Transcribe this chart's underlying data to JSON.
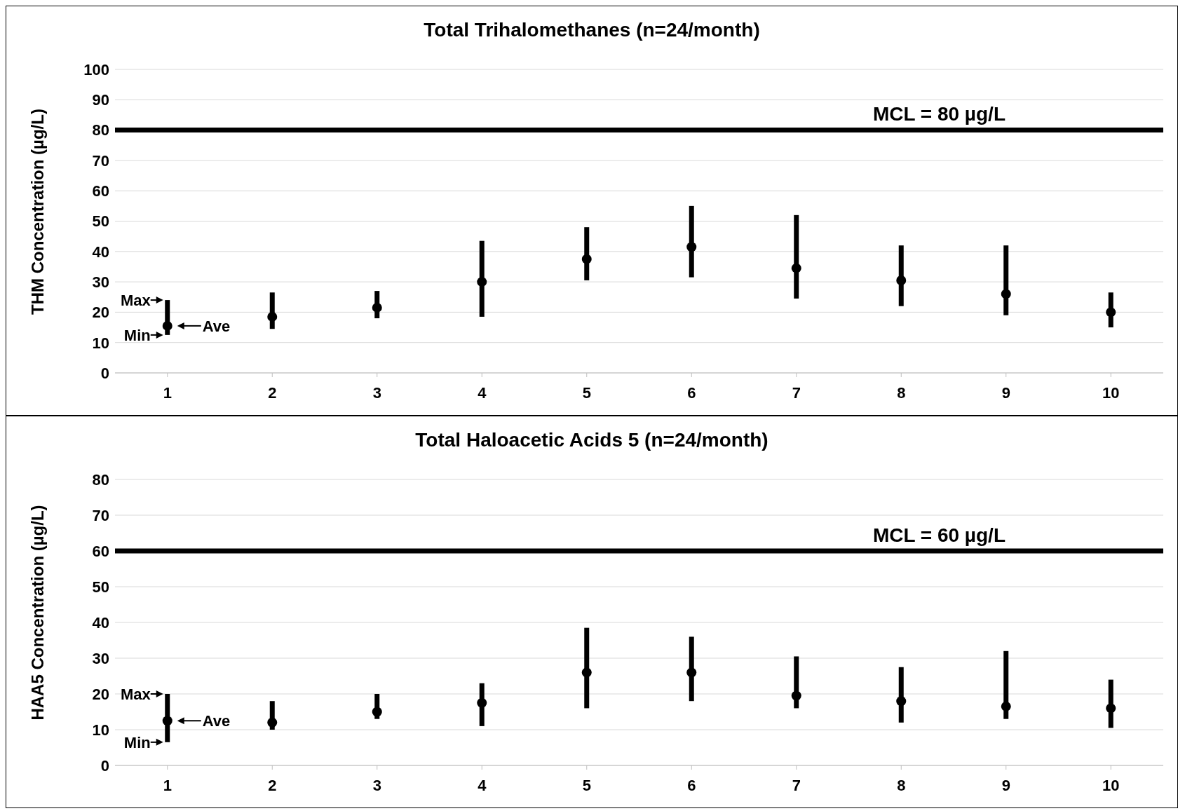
{
  "chart_data": [
    {
      "type": "scatter",
      "title": "Total Trihalomethanes (n=24/month)",
      "ylabel": "THM Concentration (µg/L)",
      "categories": [
        "1",
        "2",
        "3",
        "4",
        "5",
        "6",
        "7",
        "8",
        "9",
        "10"
      ],
      "series": [
        {
          "color": "#000000",
          "values": [
            15.5,
            18.5,
            21.5,
            30,
            37.5,
            41.5,
            34.5,
            30.5,
            26,
            20
          ],
          "errors": [
            [
              12.5,
              24
            ],
            [
              14.5,
              26.5
            ],
            [
              18,
              27
            ],
            [
              18.5,
              43.5
            ],
            [
              30.5,
              48
            ],
            [
              31.5,
              55
            ],
            [
              24.5,
              52
            ],
            [
              22,
              42
            ],
            [
              19,
              42
            ],
            [
              15,
              26.5
            ]
          ]
        }
      ],
      "ylim": [
        0,
        100
      ],
      "yticks": [
        0,
        10,
        20,
        30,
        40,
        50,
        60,
        70,
        80,
        90,
        100
      ],
      "grid": "y",
      "marker": "circle",
      "ref_lines": [
        {
          "axis": "y",
          "value": 80,
          "label": "MCL = 80 µg/L",
          "color": "#000000"
        }
      ],
      "annotations": [
        {
          "text": "Max",
          "x": "1",
          "y": 24
        },
        {
          "text": "Min",
          "x": "1",
          "y": 12.5
        },
        {
          "text": "Ave",
          "x": "1",
          "y": 15.5
        }
      ]
    },
    {
      "type": "scatter",
      "title": "Total Haloacetic Acids 5 (n=24/month)",
      "ylabel": "HAA5 Concentration (µg/L)",
      "categories": [
        "1",
        "2",
        "3",
        "4",
        "5",
        "6",
        "7",
        "8",
        "9",
        "10"
      ],
      "series": [
        {
          "color": "#000000",
          "values": [
            12.5,
            12,
            15,
            17.5,
            26,
            26,
            19.5,
            18,
            16.5,
            16
          ],
          "errors": [
            [
              6.5,
              20
            ],
            [
              10,
              18
            ],
            [
              13,
              20
            ],
            [
              11,
              23
            ],
            [
              16,
              38.5
            ],
            [
              18,
              36
            ],
            [
              16,
              30.5
            ],
            [
              12,
              27.5
            ],
            [
              13,
              32
            ],
            [
              10.5,
              24
            ]
          ]
        }
      ],
      "ylim": [
        0,
        80
      ],
      "yticks": [
        0,
        10,
        20,
        30,
        40,
        50,
        60,
        70,
        80
      ],
      "grid": "y",
      "marker": "circle",
      "ref_lines": [
        {
          "axis": "y",
          "value": 60,
          "label": "MCL = 60 µg/L",
          "color": "#000000"
        }
      ],
      "annotations": [
        {
          "text": "Max",
          "x": "1",
          "y": 20
        },
        {
          "text": "Min",
          "x": "1",
          "y": 6.5
        },
        {
          "text": "Ave",
          "x": "1",
          "y": 12.5
        }
      ]
    }
  ]
}
